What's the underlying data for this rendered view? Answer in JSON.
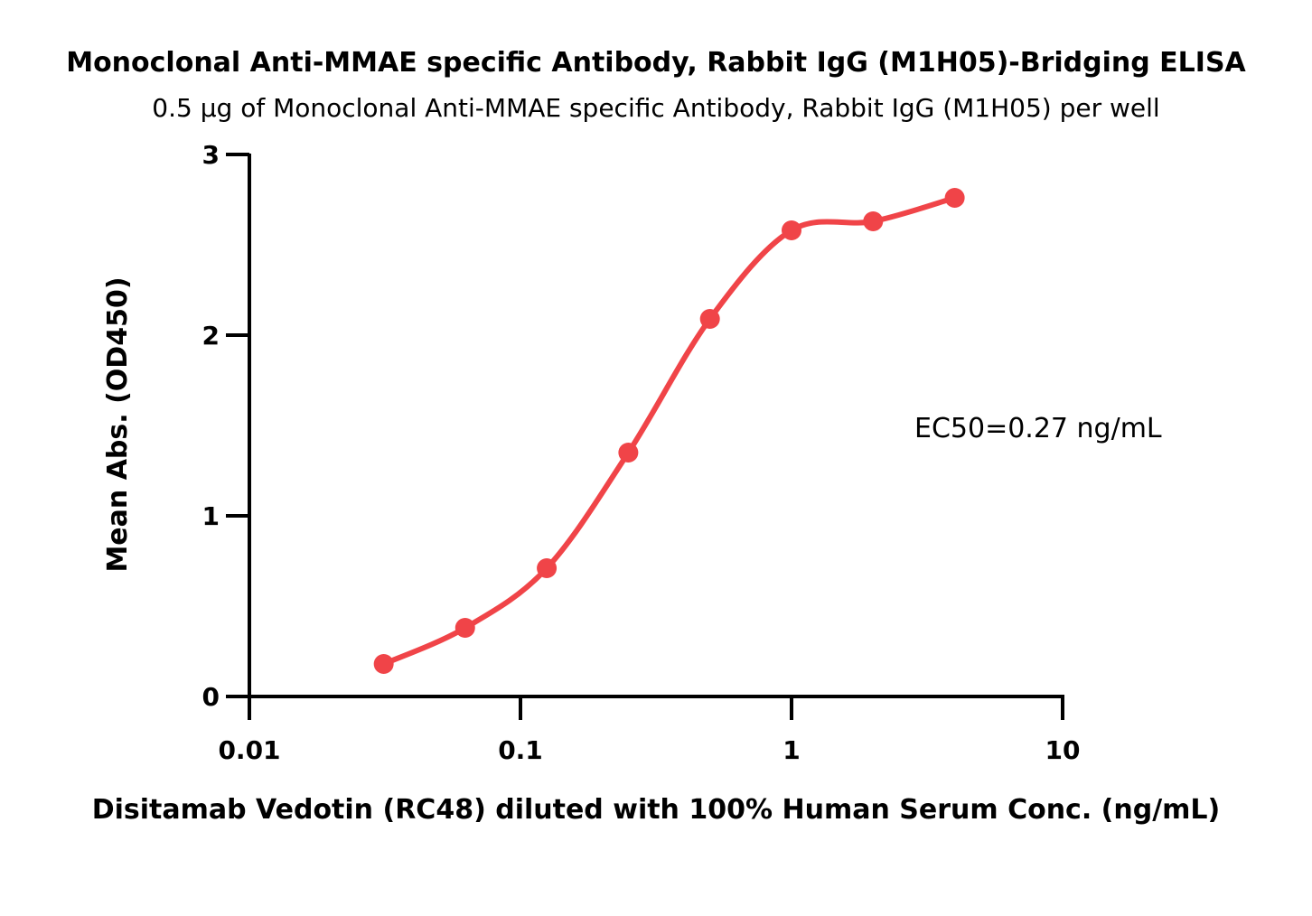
{
  "chart_data": {
    "type": "scatter",
    "title": "Monoclonal Anti-MMAE specific Antibody, Rabbit IgG (M1H05)-Bridging ELISA",
    "subtitle": "0.5 µg of Monoclonal Anti-MMAE specific Antibody, Rabbit IgG (M1H05) per well",
    "xlabel": "Disitamab Vedotin (RC48) diluted with 100% Human Serum Conc. (ng/mL)",
    "ylabel": "Mean Abs. (OD450)",
    "x_scale": "log",
    "xlim": [
      0.01,
      10
    ],
    "ylim": [
      0,
      3
    ],
    "x_ticks": [
      0.01,
      0.1,
      1,
      10
    ],
    "x_tick_labels": [
      "0.01",
      "0.1",
      "1",
      "10"
    ],
    "y_ticks": [
      0,
      1,
      2,
      3
    ],
    "y_tick_labels": [
      "0",
      "1",
      "2",
      "3"
    ],
    "grid": false,
    "color": "#f04448",
    "series": [
      {
        "x": [
          0.0313,
          0.0625,
          0.125,
          0.25,
          0.5,
          1,
          2,
          4
        ],
        "y": [
          0.18,
          0.38,
          0.71,
          1.35,
          2.09,
          2.58,
          2.63,
          2.76
        ]
      }
    ],
    "annotations": [
      {
        "text": "EC50=0.27 ng/mL"
      }
    ]
  }
}
